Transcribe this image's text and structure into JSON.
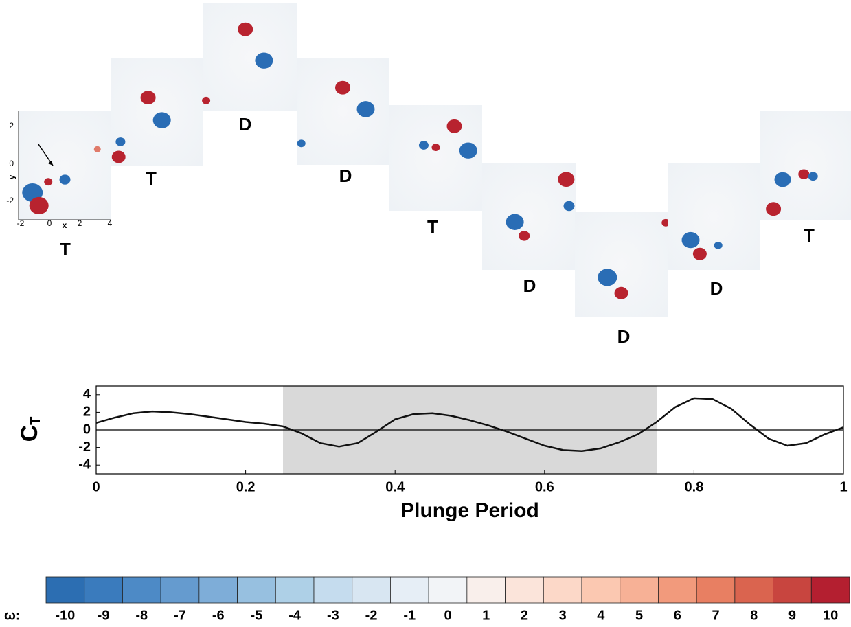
{
  "chart_data": {
    "type": "line",
    "ylabel": "C",
    "ylabel_subscript": "T",
    "xlabel": "Plunge Period",
    "x": [
      0,
      0.025,
      0.05,
      0.075,
      0.1,
      0.125,
      0.15,
      0.175,
      0.2,
      0.225,
      0.25,
      0.275,
      0.3,
      0.325,
      0.35,
      0.375,
      0.4,
      0.425,
      0.45,
      0.475,
      0.5,
      0.525,
      0.55,
      0.575,
      0.6,
      0.625,
      0.65,
      0.675,
      0.7,
      0.725,
      0.75,
      0.775,
      0.8,
      0.825,
      0.85,
      0.875,
      0.9,
      0.925,
      0.95,
      0.975,
      1.0
    ],
    "y": [
      0.8,
      1.4,
      1.9,
      2.1,
      2.0,
      1.8,
      1.5,
      1.2,
      0.9,
      0.7,
      0.4,
      -0.4,
      -1.5,
      -1.9,
      -1.5,
      -0.2,
      1.2,
      1.8,
      1.9,
      1.6,
      1.1,
      0.5,
      -0.2,
      -1.0,
      -1.8,
      -2.3,
      -2.4,
      -2.1,
      -1.4,
      -0.5,
      0.9,
      2.6,
      3.6,
      3.5,
      2.4,
      0.6,
      -1.0,
      -1.8,
      -1.5,
      -0.5,
      0.3
    ],
    "color": "#111111",
    "xlim": [
      0,
      1
    ],
    "xticks": [
      0,
      0.2,
      0.4,
      0.6,
      0.8,
      1
    ],
    "ylim": [
      -5,
      5
    ],
    "yticks": [
      4,
      2,
      0,
      -2,
      -4
    ],
    "shaded_range": [
      0.25,
      0.75
    ],
    "shade_color": "#d9d9d9",
    "reference_line": 0
  },
  "panels": [
    "T",
    "T",
    "D",
    "D",
    "T",
    "D",
    "D",
    "D",
    "T"
  ],
  "inset_axes": {
    "xlabel": "x",
    "ylabel": "y",
    "xticks": [
      -2,
      0,
      2,
      4
    ],
    "yticks": [
      2,
      0,
      -2
    ]
  },
  "colorbar": {
    "label": "ω:",
    "ticks": [
      -10,
      -9,
      -8,
      -7,
      -6,
      -5,
      -4,
      -3,
      -2,
      -1,
      0,
      1,
      2,
      3,
      4,
      5,
      6,
      7,
      8,
      9,
      10
    ],
    "colors": [
      "#2c6eb2",
      "#3a7bbd",
      "#4d8ac6",
      "#659bcf",
      "#7eadd8",
      "#97c0e0",
      "#aed0e7",
      "#c5dcee",
      "#d8e6f2",
      "#e6eef6",
      "#f2f4f7",
      "#f9efeb",
      "#fbe4da",
      "#fcd8c8",
      "#fbc8b1",
      "#f7b196",
      "#f29a7c",
      "#e87f62",
      "#da644f",
      "#c8453f",
      "#b41f30"
    ]
  }
}
